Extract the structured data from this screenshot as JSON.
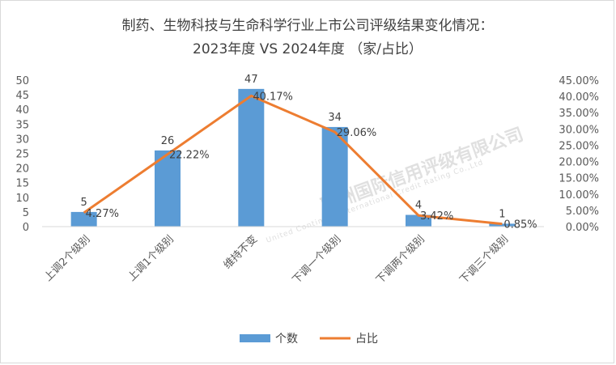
{
  "chart_data": {
    "type": "bar",
    "title_line1": "制药、生物科技与生命科学行业上市公司评级结果变化情况：",
    "title_line2": "2023年度 VS 2024年度 （家/占比）",
    "categories": [
      "上调2个级别",
      "上调1个级别",
      "维持不变",
      "下调一个级别",
      "下调两个级别",
      "下调三个级别"
    ],
    "series": [
      {
        "name": "个数",
        "type": "bar",
        "axis": "left",
        "color": "#5b9bd5",
        "values": [
          5,
          26,
          47,
          34,
          4,
          1
        ]
      },
      {
        "name": "占比",
        "type": "line",
        "axis": "right",
        "color": "#ed7d31",
        "values": [
          4.27,
          22.22,
          40.17,
          29.06,
          3.42,
          0.85
        ]
      }
    ],
    "left_axis": {
      "ylim": [
        0,
        50
      ],
      "ticks": [
        "0",
        "5",
        "10",
        "15",
        "20",
        "25",
        "30",
        "35",
        "40",
        "45",
        "50"
      ]
    },
    "right_axis": {
      "ylim": [
        0,
        45
      ],
      "ticks": [
        "0.00%",
        "5.00%",
        "10.00%",
        "15.00%",
        "20.00%",
        "25.00%",
        "30.00%",
        "35.00%",
        "40.00%",
        "45.00%"
      ]
    },
    "bar_labels": [
      "5",
      "26",
      "47",
      "34",
      "4",
      "1"
    ],
    "line_labels": [
      "4.27%",
      "22.22%",
      "40.17%",
      "29.06%",
      "3.42%",
      "0.85%"
    ],
    "legend_position": "bottom",
    "grid": false
  },
  "watermark": {
    "text": "联洲国际信用评级有限公司",
    "subtext": "United Continent International Credit Rating Co.,Ltd"
  }
}
